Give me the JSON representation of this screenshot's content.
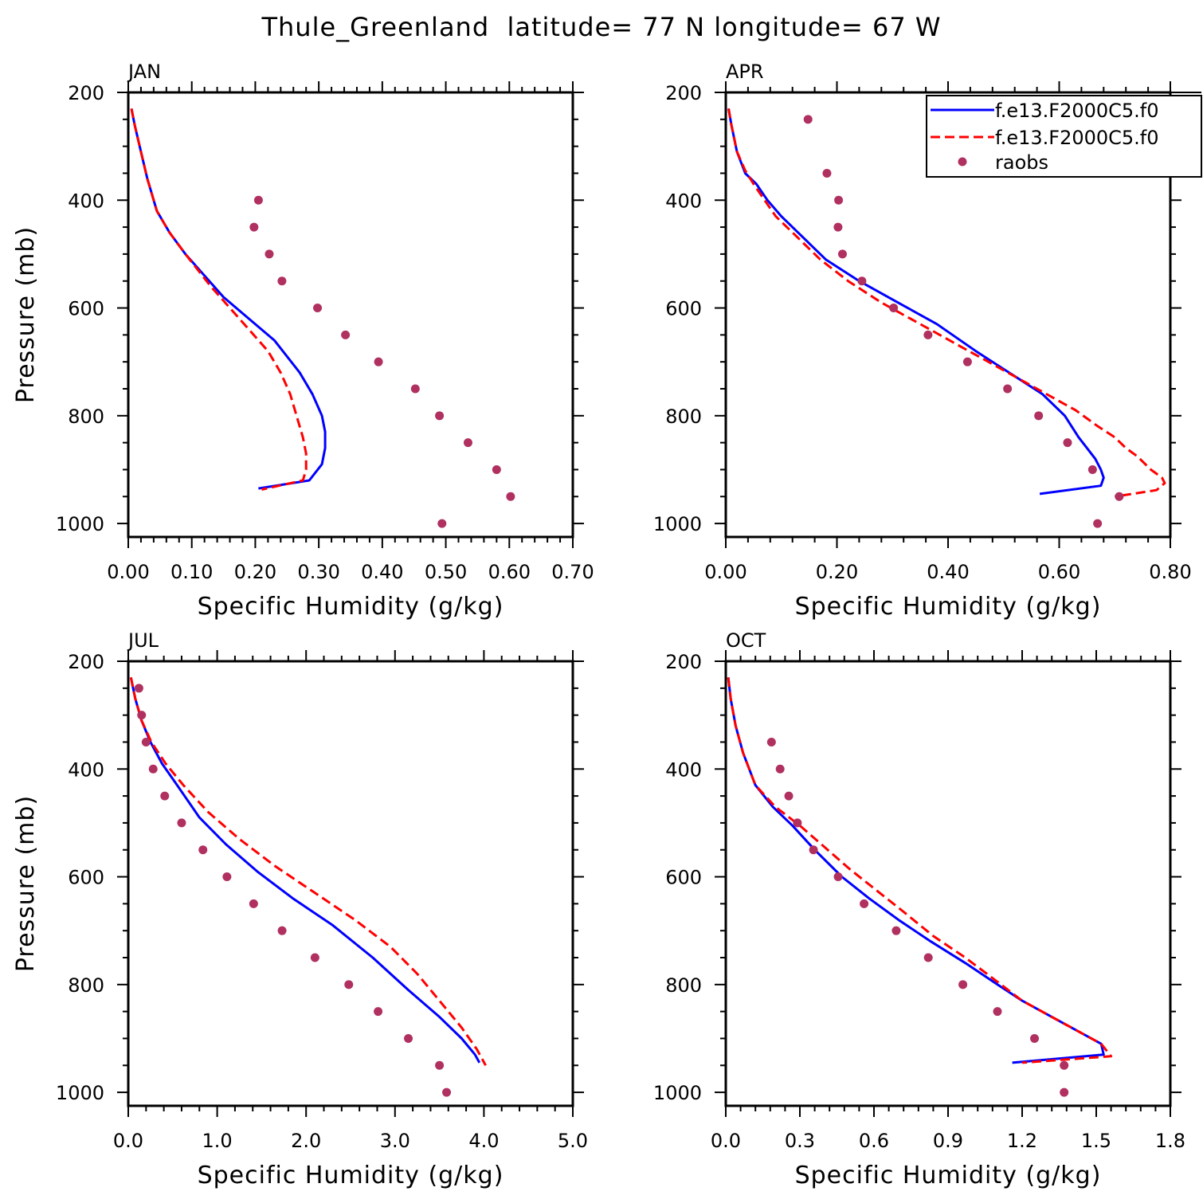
{
  "figure": {
    "title": "Thule_Greenland  latitude= 77 N longitude= 67 W"
  },
  "legend": {
    "entries": [
      {
        "label": "f.e13.F2000C5.f0",
        "style": "solid",
        "color": "#0000ff"
      },
      {
        "label": "f.e13.F2000C5.f0",
        "style": "dashed",
        "color": "#ff0000"
      },
      {
        "label": "raobs",
        "style": "marker",
        "color": "#b03060"
      }
    ]
  },
  "colors": {
    "series_solid": "#0000ff",
    "series_dashed": "#ff0000",
    "raobs": "#b03060"
  },
  "chart_data": [
    {
      "type": "line",
      "title": "JAN",
      "xlabel": "Specific Humidity (g/kg)",
      "ylabel": "Pressure (mb)",
      "xlim": [
        0,
        0.7
      ],
      "ylim": [
        200,
        1025
      ],
      "x_ticks": [
        "0.00",
        "0.10",
        "0.20",
        "0.30",
        "0.40",
        "0.50",
        "0.60",
        "0.70"
      ],
      "x_tick_values": [
        0,
        0.1,
        0.2,
        0.3,
        0.4,
        0.5,
        0.6,
        0.7
      ],
      "y_ticks": [
        "200",
        "400",
        "600",
        "800",
        "1000"
      ],
      "y_tick_values": [
        200,
        400,
        600,
        800,
        1000
      ],
      "series": [
        {
          "name": "f.e13.F2000C5.f0",
          "style": "solid",
          "x": [
            0.005,
            0.01,
            0.02,
            0.03,
            0.045,
            0.065,
            0.09,
            0.12,
            0.15,
            0.19,
            0.23,
            0.27,
            0.29,
            0.305,
            0.31,
            0.31,
            0.305,
            0.285,
            0.205
          ],
          "y": [
            230,
            260,
            310,
            360,
            420,
            460,
            500,
            540,
            580,
            620,
            660,
            720,
            760,
            800,
            830,
            860,
            890,
            920,
            935
          ]
        },
        {
          "name": "f.e13.F2000C5.f0",
          "style": "dashed",
          "x": [
            0.005,
            0.01,
            0.02,
            0.03,
            0.045,
            0.065,
            0.09,
            0.11,
            0.13,
            0.16,
            0.19,
            0.22,
            0.24,
            0.255,
            0.265,
            0.275,
            0.28,
            0.28,
            0.275,
            0.21
          ],
          "y": [
            230,
            260,
            310,
            360,
            420,
            460,
            500,
            530,
            560,
            600,
            640,
            680,
            720,
            760,
            800,
            840,
            870,
            900,
            920,
            937
          ]
        },
        {
          "name": "raobs",
          "style": "marker",
          "x": [
            0.205,
            0.198,
            0.222,
            0.242,
            0.298,
            0.342,
            0.394,
            0.452,
            0.49,
            0.535,
            0.58,
            0.602,
            0.494
          ],
          "y": [
            400,
            450,
            500,
            550,
            600,
            650,
            700,
            750,
            800,
            850,
            900,
            950,
            1000
          ]
        }
      ]
    },
    {
      "type": "line",
      "title": "APR",
      "xlabel": "Specific Humidity (g/kg)",
      "ylabel": "Pressure (mb)",
      "xlim": [
        0,
        0.8
      ],
      "ylim": [
        200,
        1025
      ],
      "x_ticks": [
        "0.00",
        "0.20",
        "0.40",
        "0.60",
        "0.80"
      ],
      "x_tick_values": [
        0,
        0.2,
        0.4,
        0.6,
        0.8
      ],
      "y_ticks": [
        "200",
        "400",
        "600",
        "800",
        "1000"
      ],
      "y_tick_values": [
        200,
        400,
        600,
        800,
        1000
      ],
      "series": [
        {
          "name": "f.e13.F2000C5.f0",
          "style": "solid",
          "x": [
            0.005,
            0.01,
            0.02,
            0.035,
            0.055,
            0.075,
            0.1,
            0.14,
            0.18,
            0.24,
            0.31,
            0.38,
            0.45,
            0.51,
            0.57,
            0.61,
            0.635,
            0.65,
            0.665,
            0.675,
            0.68,
            0.675,
            0.565
          ],
          "y": [
            230,
            260,
            310,
            350,
            370,
            400,
            430,
            470,
            510,
            550,
            590,
            630,
            680,
            720,
            760,
            800,
            840,
            860,
            880,
            900,
            915,
            930,
            945
          ]
        },
        {
          "name": "f.e13.F2000C5.f0",
          "style": "dashed",
          "x": [
            0.005,
            0.01,
            0.02,
            0.035,
            0.05,
            0.07,
            0.09,
            0.13,
            0.17,
            0.22,
            0.28,
            0.35,
            0.42,
            0.49,
            0.56,
            0.63,
            0.67,
            0.7,
            0.72,
            0.74,
            0.765,
            0.785,
            0.79,
            0.775,
            0.7
          ],
          "y": [
            230,
            260,
            310,
            345,
            370,
            400,
            430,
            470,
            510,
            550,
            590,
            630,
            670,
            710,
            750,
            790,
            820,
            840,
            860,
            875,
            900,
            915,
            925,
            938,
            950
          ]
        },
        {
          "name": "raobs",
          "style": "marker",
          "x": [
            0.148,
            0.182,
            0.203,
            0.202,
            0.21,
            0.245,
            0.302,
            0.364,
            0.435,
            0.507,
            0.563,
            0.615,
            0.66,
            0.708,
            0.669
          ],
          "y": [
            250,
            350,
            400,
            450,
            500,
            550,
            600,
            650,
            700,
            750,
            800,
            850,
            900,
            950,
            1000
          ]
        }
      ]
    },
    {
      "type": "line",
      "title": "JUL",
      "xlabel": "Specific Humidity (g/kg)",
      "ylabel": "Pressure (mb)",
      "xlim": [
        0,
        5.0
      ],
      "ylim": [
        200,
        1025
      ],
      "x_ticks": [
        "0.0",
        "1.0",
        "2.0",
        "3.0",
        "4.0",
        "5.0"
      ],
      "x_tick_values": [
        0,
        1,
        2,
        3,
        4,
        5
      ],
      "y_ticks": [
        "200",
        "400",
        "600",
        "800",
        "1000"
      ],
      "y_tick_values": [
        200,
        400,
        600,
        800,
        1000
      ],
      "series": [
        {
          "name": "f.e13.F2000C5.f0",
          "style": "solid",
          "x": [
            0.03,
            0.08,
            0.15,
            0.25,
            0.38,
            0.55,
            0.8,
            1.1,
            1.45,
            1.85,
            2.3,
            2.75,
            3.15,
            3.5,
            3.75,
            3.9,
            3.95
          ],
          "y": [
            230,
            270,
            310,
            350,
            390,
            430,
            490,
            540,
            590,
            640,
            690,
            750,
            810,
            860,
            900,
            930,
            945
          ]
        },
        {
          "name": "f.e13.F2000C5.f0",
          "style": "dashed",
          "x": [
            0.03,
            0.08,
            0.15,
            0.26,
            0.42,
            0.62,
            0.9,
            1.25,
            1.65,
            2.1,
            2.55,
            2.95,
            3.25,
            3.5,
            3.75,
            3.92,
            4.02
          ],
          "y": [
            230,
            270,
            310,
            350,
            390,
            430,
            480,
            530,
            580,
            630,
            680,
            730,
            780,
            830,
            880,
            920,
            950
          ]
        },
        {
          "name": "raobs",
          "style": "marker",
          "x": [
            0.12,
            0.15,
            0.2,
            0.28,
            0.41,
            0.6,
            0.84,
            1.11,
            1.41,
            1.73,
            2.1,
            2.48,
            2.81,
            3.15,
            3.5,
            3.58
          ],
          "y": [
            250,
            300,
            350,
            400,
            450,
            500,
            550,
            600,
            650,
            700,
            750,
            800,
            850,
            900,
            950,
            1000
          ]
        }
      ]
    },
    {
      "type": "line",
      "title": "OCT",
      "xlabel": "Specific Humidity (g/kg)",
      "ylabel": "Pressure (mb)",
      "xlim": [
        0,
        1.8
      ],
      "ylim": [
        200,
        1025
      ],
      "x_ticks": [
        "0.0",
        "0.3",
        "0.6",
        "0.9",
        "1.2",
        "1.5",
        "1.8"
      ],
      "x_tick_values": [
        0,
        0.3,
        0.6,
        0.9,
        1.2,
        1.5,
        1.8
      ],
      "y_ticks": [
        "200",
        "400",
        "600",
        "800",
        "1000"
      ],
      "y_tick_values": [
        200,
        400,
        600,
        800,
        1000
      ],
      "series": [
        {
          "name": "f.e13.F2000C5.f0",
          "style": "solid",
          "x": [
            0.01,
            0.02,
            0.04,
            0.07,
            0.12,
            0.19,
            0.27,
            0.36,
            0.47,
            0.58,
            0.7,
            0.83,
            0.97,
            1.1,
            1.2,
            1.36,
            1.52,
            1.53,
            1.16
          ],
          "y": [
            230,
            270,
            320,
            370,
            430,
            470,
            505,
            550,
            600,
            640,
            680,
            720,
            760,
            800,
            830,
            870,
            910,
            930,
            945
          ]
        },
        {
          "name": "f.e13.F2000C5.f0",
          "style": "dashed",
          "x": [
            0.01,
            0.02,
            0.04,
            0.07,
            0.12,
            0.2,
            0.3,
            0.4,
            0.5,
            0.61,
            0.72,
            0.84,
            0.97,
            1.1,
            1.2,
            1.36,
            1.52,
            1.56,
            1.2
          ],
          "y": [
            230,
            270,
            320,
            370,
            430,
            470,
            505,
            545,
            585,
            625,
            665,
            710,
            750,
            795,
            830,
            870,
            910,
            933,
            945
          ]
        },
        {
          "name": "raobs",
          "style": "marker",
          "x": [
            0.185,
            0.22,
            0.255,
            0.29,
            0.355,
            0.455,
            0.56,
            0.69,
            0.82,
            0.96,
            1.1,
            1.25,
            1.37,
            1.37
          ],
          "y": [
            350,
            400,
            450,
            500,
            550,
            600,
            650,
            700,
            750,
            800,
            850,
            900,
            950,
            1000
          ]
        }
      ]
    }
  ]
}
